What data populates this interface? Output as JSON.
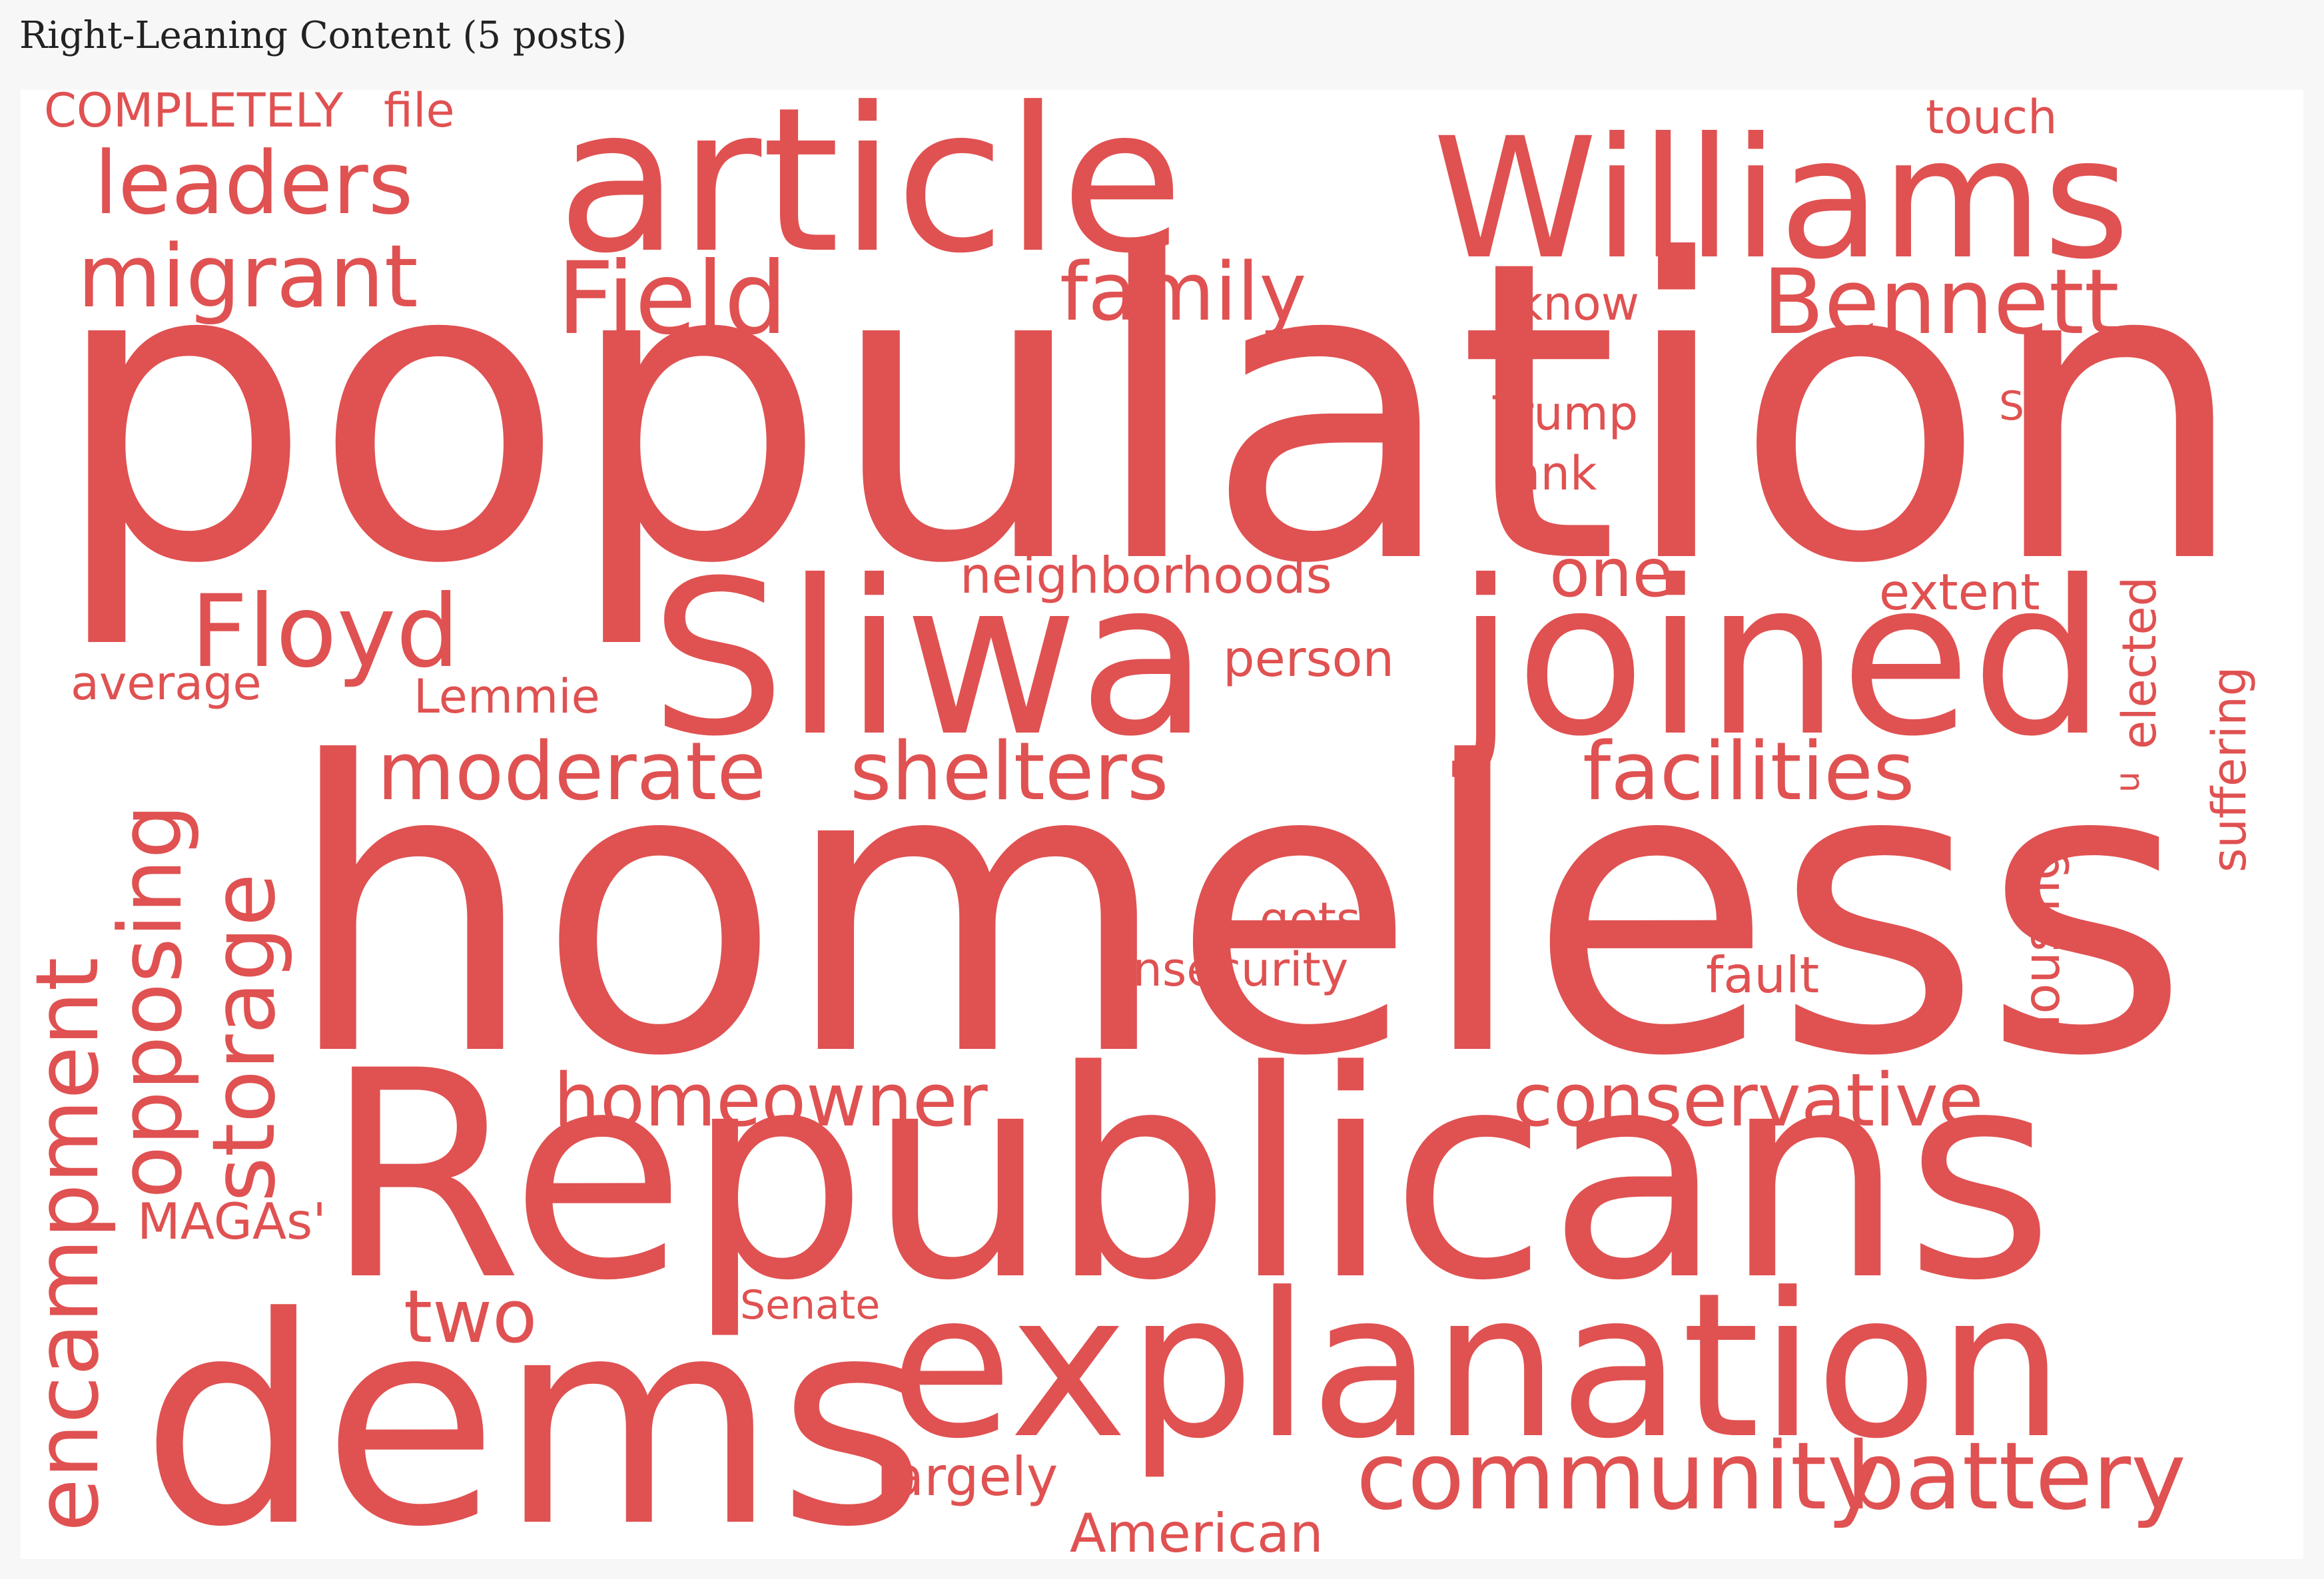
{
  "title": "Right-Leaning Content (5 posts)",
  "colors": {
    "word": "#e05151",
    "background": "#ffffff",
    "page": "#f7f7f7"
  },
  "words": [
    {
      "text": "population"
    },
    {
      "text": "homeless"
    },
    {
      "text": "Republicans"
    },
    {
      "text": "dems"
    },
    {
      "text": "explanation"
    },
    {
      "text": "article"
    },
    {
      "text": "Williams"
    },
    {
      "text": "Sliwa"
    },
    {
      "text": "joined"
    },
    {
      "text": "Floyd"
    },
    {
      "text": "Field"
    },
    {
      "text": "family"
    },
    {
      "text": "Bennett"
    },
    {
      "text": "leaders"
    },
    {
      "text": "migrant"
    },
    {
      "text": "COMPLETELY"
    },
    {
      "text": "file"
    },
    {
      "text": "touch"
    },
    {
      "text": "know"
    },
    {
      "text": "Trump"
    },
    {
      "text": "rank"
    },
    {
      "text": "S"
    },
    {
      "text": "neighborhoods"
    },
    {
      "text": "one"
    },
    {
      "text": "extent"
    },
    {
      "text": "person"
    },
    {
      "text": "average"
    },
    {
      "text": "Lemmie"
    },
    {
      "text": "moderate"
    },
    {
      "text": "shelters"
    },
    {
      "text": "facilities"
    },
    {
      "text": "elected"
    },
    {
      "text": "suffering"
    },
    {
      "text": "u"
    },
    {
      "text": "encampment"
    },
    {
      "text": "opposing"
    },
    {
      "text": "storage"
    },
    {
      "text": "gets"
    },
    {
      "text": "insecurity"
    },
    {
      "text": "fault"
    },
    {
      "text": "housing"
    },
    {
      "text": "homeowner"
    },
    {
      "text": "conservative"
    },
    {
      "text": "MAGAs'"
    },
    {
      "text": "two"
    },
    {
      "text": "Senate"
    },
    {
      "text": "largely"
    },
    {
      "text": "American"
    },
    {
      "text": "community"
    },
    {
      "text": "battery"
    }
  ]
}
